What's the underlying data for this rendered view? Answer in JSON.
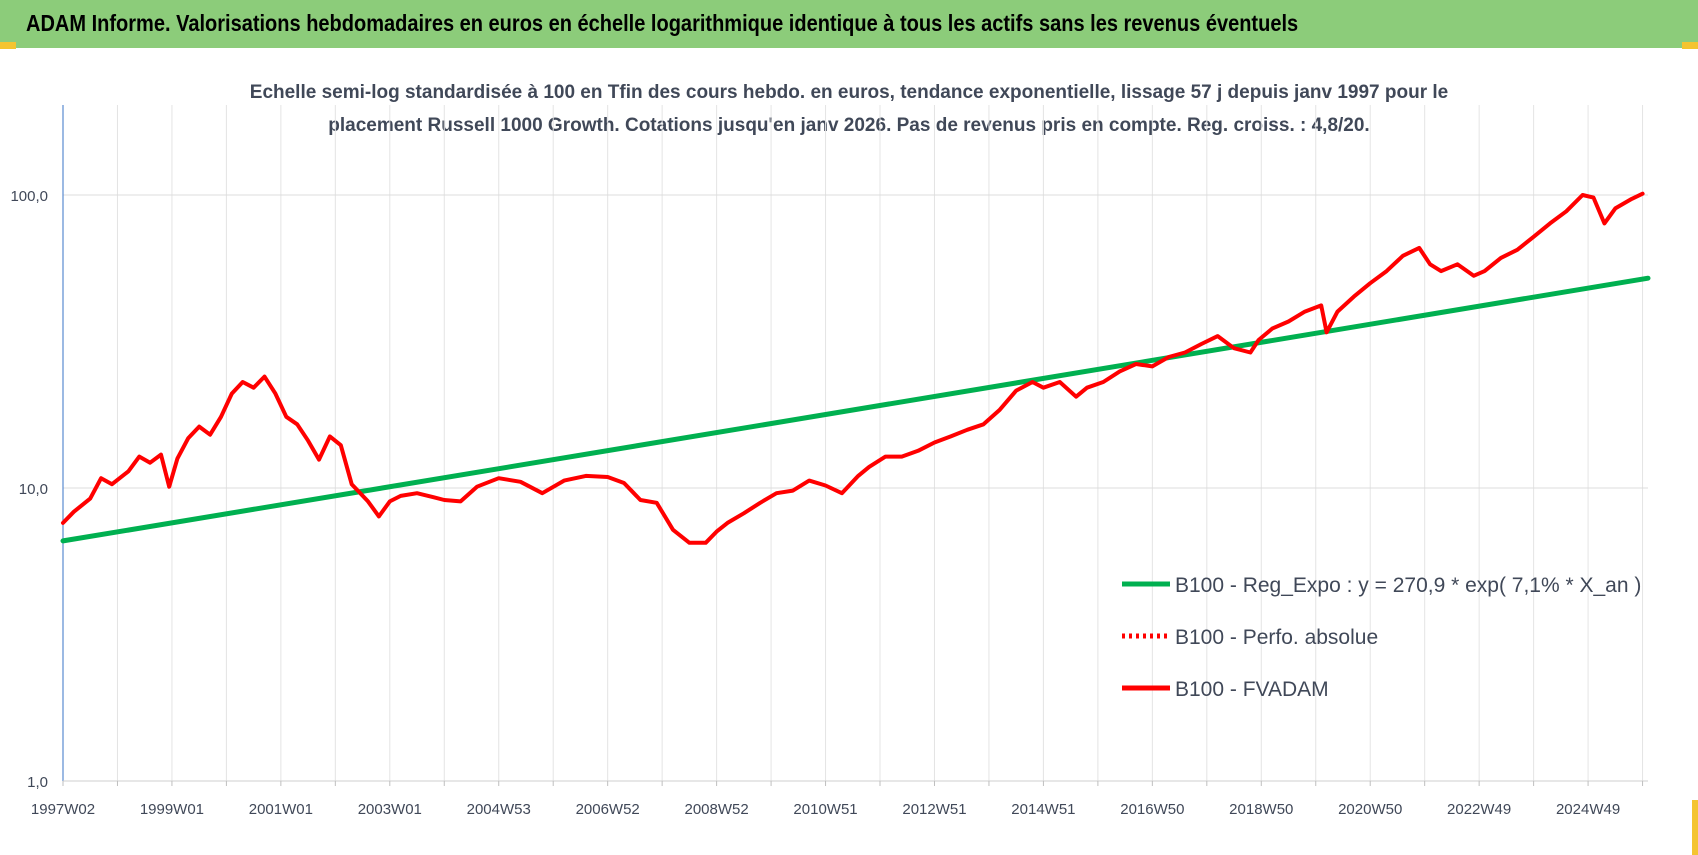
{
  "header": {
    "title": "ADAM Informe. Valorisations hebdomadaires en euros en échelle logarithmique identique à tous les actifs sans les revenus éventuels"
  },
  "chart_data": {
    "type": "line",
    "subtitle_lines": [
      "Echelle semi-log standardisée à 100 en Tfin des cours hebdo. en euros, tendance exponentielle, lissage 57 j depuis janv 1997 pour le",
      "placement Russell 1000 Growth. Cotations jusqu'en janv 2026. Pas de revenus pris en compte. Reg. croiss. : 4,8/20."
    ],
    "y_scale": "log",
    "ylim": [
      1,
      200
    ],
    "y_ticks": [
      {
        "value": 1,
        "label": "1,0"
      },
      {
        "value": 10,
        "label": "10,0"
      },
      {
        "value": 100,
        "label": "100,0"
      }
    ],
    "x_range": [
      1997.0,
      2026.1
    ],
    "x_ticks": [
      {
        "x": 1997.0,
        "label": "1997W02"
      },
      {
        "x": 1999.0,
        "label": "1999W01"
      },
      {
        "x": 2001.0,
        "label": "2001W01"
      },
      {
        "x": 2003.0,
        "label": "2003W01"
      },
      {
        "x": 2005.0,
        "label": "2004W53"
      },
      {
        "x": 2007.0,
        "label": "2006W52"
      },
      {
        "x": 2009.0,
        "label": "2008W52"
      },
      {
        "x": 2011.0,
        "label": "2010W51"
      },
      {
        "x": 2013.0,
        "label": "2012W51"
      },
      {
        "x": 2015.0,
        "label": "2014W51"
      },
      {
        "x": 2017.0,
        "label": "2016W50"
      },
      {
        "x": 2019.0,
        "label": "2018W50"
      },
      {
        "x": 2021.0,
        "label": "2020W50"
      },
      {
        "x": 2023.0,
        "label": "2022W49"
      },
      {
        "x": 2025.0,
        "label": "2024W49"
      }
    ],
    "grid": true,
    "legend_position": "right",
    "series": [
      {
        "name": "B100 - Reg_Expo : y = 270,9 * exp( 7,1% *  X_an )",
        "color": "#00b050",
        "style": "solid",
        "x": [
          1997.0,
          2026.1
        ],
        "y": [
          6.6,
          52.0
        ]
      },
      {
        "name": "B100 - Perfo. absolue",
        "color": "#ff0000",
        "style": "dotted",
        "x": [],
        "y": []
      },
      {
        "name": "B100 - FVADAM",
        "color": "#ff0000",
        "style": "solid",
        "x": [
          1997.0,
          1997.2,
          1997.5,
          1997.7,
          1997.9,
          1998.2,
          1998.4,
          1998.6,
          1998.8,
          1998.95,
          1999.1,
          1999.3,
          1999.5,
          1999.7,
          1999.9,
          2000.1,
          2000.3,
          2000.5,
          2000.7,
          2000.9,
          2001.1,
          2001.3,
          2001.5,
          2001.7,
          2001.9,
          2002.1,
          2002.3,
          2002.6,
          2002.8,
          2003.0,
          2003.2,
          2003.5,
          2003.8,
          2004.0,
          2004.3,
          2004.6,
          2005.0,
          2005.4,
          2005.8,
          2006.2,
          2006.6,
          2007.0,
          2007.3,
          2007.6,
          2007.9,
          2008.2,
          2008.5,
          2008.8,
          2009.0,
          2009.2,
          2009.5,
          2009.8,
          2010.1,
          2010.4,
          2010.7,
          2011.0,
          2011.3,
          2011.6,
          2011.8,
          2012.1,
          2012.4,
          2012.7,
          2013.0,
          2013.3,
          2013.6,
          2013.9,
          2014.2,
          2014.5,
          2014.8,
          2015.0,
          2015.3,
          2015.6,
          2015.8,
          2016.1,
          2016.4,
          2016.7,
          2017.0,
          2017.3,
          2017.6,
          2017.9,
          2018.2,
          2018.5,
          2018.8,
          2018.95,
          2019.2,
          2019.5,
          2019.8,
          2020.1,
          2020.2,
          2020.4,
          2020.7,
          2021.0,
          2021.3,
          2021.6,
          2021.9,
          2022.1,
          2022.3,
          2022.6,
          2022.9,
          2023.1,
          2023.4,
          2023.7,
          2024.0,
          2024.3,
          2024.6,
          2024.9,
          2025.1,
          2025.3,
          2025.5,
          2025.8,
          2026.0
        ],
        "y": [
          7.6,
          8.3,
          9.2,
          10.8,
          10.3,
          11.4,
          12.8,
          12.2,
          13.0,
          10.1,
          12.6,
          14.8,
          16.2,
          15.2,
          17.5,
          21.0,
          23.0,
          22.0,
          24.0,
          21.0,
          17.5,
          16.5,
          14.5,
          12.5,
          15.0,
          14.0,
          10.3,
          9.0,
          8.0,
          9.0,
          9.4,
          9.6,
          9.3,
          9.1,
          9.0,
          10.1,
          10.8,
          10.5,
          9.6,
          10.6,
          11.0,
          10.9,
          10.4,
          9.1,
          8.9,
          7.2,
          6.5,
          6.5,
          7.1,
          7.6,
          8.2,
          8.9,
          9.6,
          9.8,
          10.6,
          10.2,
          9.6,
          11.0,
          11.8,
          12.8,
          12.8,
          13.4,
          14.3,
          15.0,
          15.8,
          16.5,
          18.5,
          21.5,
          23.0,
          22.0,
          23.0,
          20.5,
          22.0,
          23.0,
          25.0,
          26.5,
          26.0,
          28.0,
          29.0,
          31.0,
          33.0,
          30.0,
          29.0,
          32.0,
          35.0,
          37.0,
          40.0,
          42.0,
          34.0,
          40.0,
          45.0,
          50.0,
          55.0,
          62.0,
          66.0,
          58.0,
          55.0,
          58.0,
          53.0,
          55.0,
          61.0,
          65.0,
          72.0,
          80.0,
          88.0,
          100.0,
          98.0,
          80.0,
          90.0,
          97.0,
          101.0
        ]
      }
    ]
  }
}
